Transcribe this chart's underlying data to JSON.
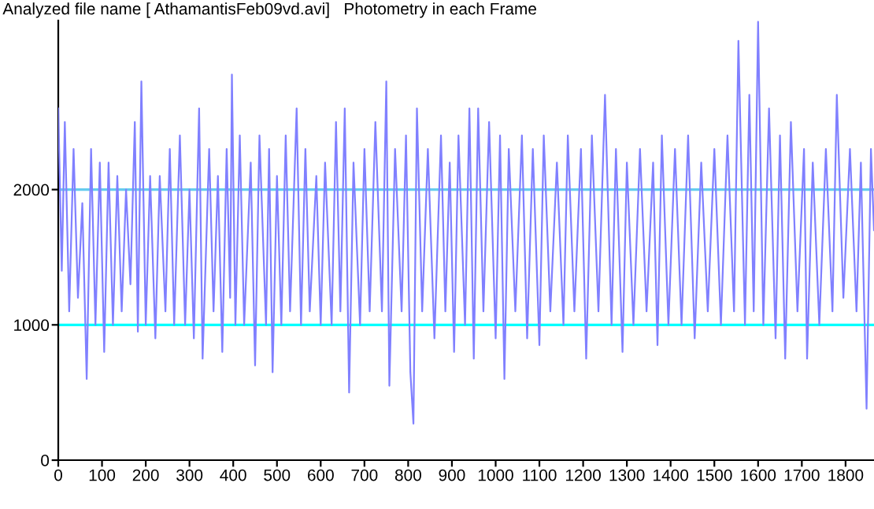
{
  "chart_data": {
    "type": "line",
    "title": "Analyzed file name [ AthamantisFeb09vd.avi]   Photometry in each Frame",
    "series": [
      {
        "color": "#8080ff",
        "x": [
          0,
          8,
          15,
          25,
          35,
          45,
          55,
          65,
          75,
          85,
          95,
          105,
          115,
          125,
          135,
          145,
          155,
          165,
          175,
          182,
          190,
          200,
          210,
          222,
          232,
          245,
          255,
          265,
          278,
          290,
          300,
          310,
          322,
          330,
          345,
          355,
          365,
          375,
          385,
          393,
          397,
          405,
          415,
          425,
          440,
          450,
          460,
          475,
          482,
          490,
          500,
          510,
          520,
          530,
          545,
          555,
          565,
          575,
          590,
          600,
          610,
          625,
          635,
          645,
          655,
          665,
          675,
          690,
          700,
          712,
          725,
          740,
          750,
          757,
          770,
          785,
          795,
          805,
          812,
          820,
          832,
          845,
          860,
          875,
          885,
          895,
          905,
          915,
          930,
          940,
          950,
          960,
          972,
          985,
          1000,
          1010,
          1020,
          1030,
          1045,
          1060,
          1072,
          1085,
          1100,
          1110,
          1125,
          1140,
          1155,
          1165,
          1180,
          1195,
          1207,
          1220,
          1235,
          1250,
          1265,
          1275,
          1290,
          1300,
          1315,
          1330,
          1345,
          1360,
          1370,
          1380,
          1395,
          1410,
          1425,
          1440,
          1455,
          1470,
          1485,
          1500,
          1515,
          1530,
          1545,
          1555,
          1570,
          1580,
          1590,
          1600,
          1612,
          1625,
          1640,
          1650,
          1662,
          1675,
          1690,
          1705,
          1712,
          1725,
          1740,
          1755,
          1770,
          1780,
          1795,
          1810,
          1825,
          1835,
          1848,
          1858,
          1865
        ],
        "values": [
          2600,
          1400,
          2500,
          1100,
          2300,
          1200,
          1900,
          600,
          2300,
          1000,
          2200,
          800,
          2200,
          1000,
          2100,
          1100,
          2000,
          1300,
          2500,
          950,
          2800,
          1000,
          2100,
          900,
          2100,
          1100,
          2300,
          1000,
          2400,
          1000,
          2000,
          900,
          2600,
          750,
          2300,
          1100,
          2100,
          800,
          2300,
          1200,
          2850,
          1000,
          2400,
          1000,
          2200,
          700,
          2400,
          1000,
          2300,
          650,
          2100,
          1000,
          2400,
          1100,
          2600,
          1000,
          2300,
          1100,
          2100,
          1000,
          2200,
          1000,
          2500,
          1100,
          2600,
          500,
          2200,
          1000,
          2300,
          1100,
          2500,
          1100,
          2800,
          550,
          2300,
          1100,
          2400,
          650,
          270,
          2600,
          1100,
          2300,
          900,
          2400,
          1100,
          2200,
          800,
          2400,
          1000,
          2600,
          750,
          2600,
          1100,
          2500,
          900,
          2400,
          600,
          2300,
          1100,
          2400,
          900,
          2300,
          850,
          2400,
          1100,
          2200,
          1000,
          2400,
          1100,
          2300,
          750,
          2400,
          1100,
          2700,
          1000,
          2300,
          800,
          2200,
          1000,
          2300,
          1100,
          2200,
          850,
          2400,
          1000,
          2300,
          1000,
          2400,
          900,
          2200,
          1100,
          2300,
          1000,
          2400,
          1100,
          3100,
          1000,
          2700,
          1100,
          3240,
          1000,
          2600,
          900,
          2400,
          750,
          2500,
          1100,
          2300,
          750,
          2200,
          1000,
          2300,
          1100,
          2700,
          1200,
          2300,
          1100,
          2200,
          380,
          2300,
          1700
        ]
      }
    ],
    "xlim": [
      0,
      1865
    ],
    "ylim": [
      0,
      3250
    ],
    "xticks": [
      0,
      100,
      200,
      300,
      400,
      500,
      600,
      700,
      800,
      900,
      1000,
      1100,
      1200,
      1300,
      1400,
      1500,
      1600,
      1700,
      1800
    ],
    "yticks": [
      0,
      1000,
      2000
    ],
    "ref_lines": [
      {
        "axis": "y",
        "value": 1000,
        "color": "#00ffff"
      },
      {
        "axis": "y",
        "value": 2000,
        "color": "#66ccee"
      }
    ]
  }
}
